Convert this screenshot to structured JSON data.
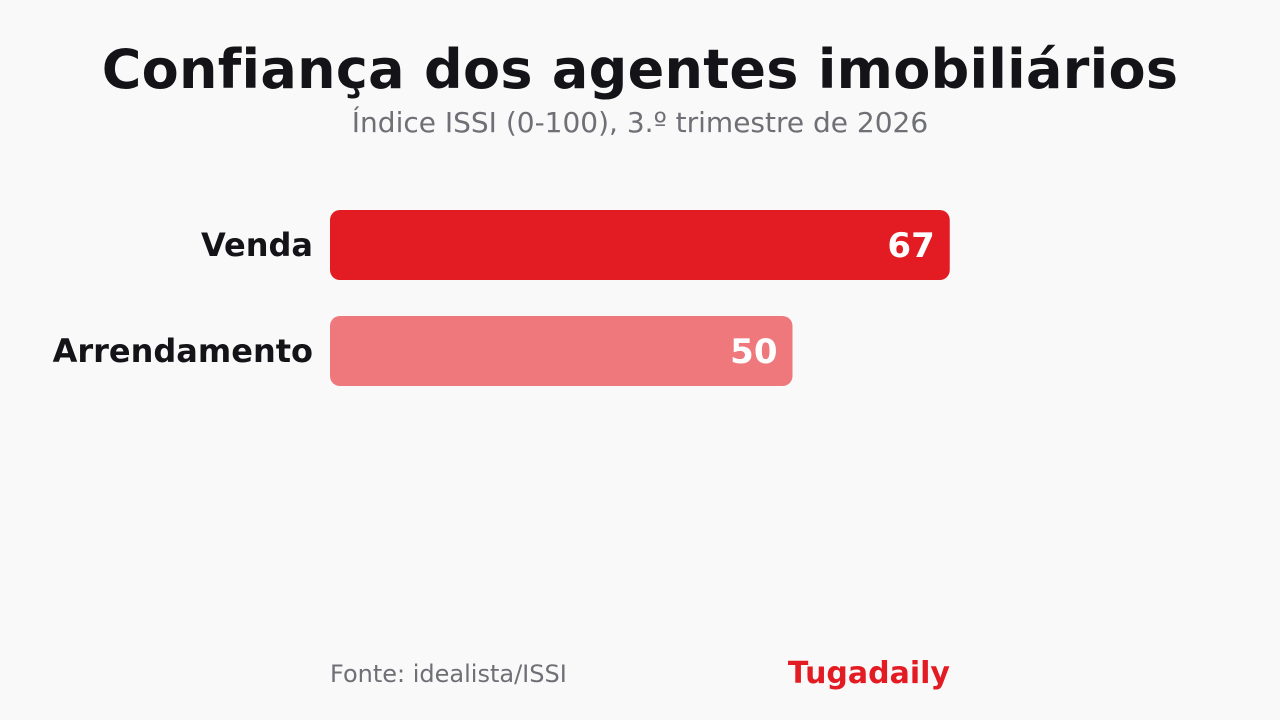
{
  "header": {
    "title": "Confiança dos agentes imobiliários",
    "subtitle": "Índice ISSI (0-100), 3.º trimestre de 2026"
  },
  "chart_data": {
    "type": "bar",
    "orientation": "horizontal",
    "title": "Confiança dos agentes imobiliários",
    "subtitle": "Índice ISSI (0-100), 3.º trimestre de 2026",
    "categories": [
      "Venda",
      "Arrendamento"
    ],
    "values": [
      67,
      50
    ],
    "colors": [
      "#e31b23",
      "#ee787b"
    ],
    "xlim": [
      0,
      100
    ],
    "grid": false,
    "legend": "none",
    "data_labels": [
      "67",
      "50"
    ]
  },
  "footer": {
    "source": "Fonte: idealista/ISSI",
    "brand": "Tugadaily",
    "brand_color": "#e31b23"
  }
}
